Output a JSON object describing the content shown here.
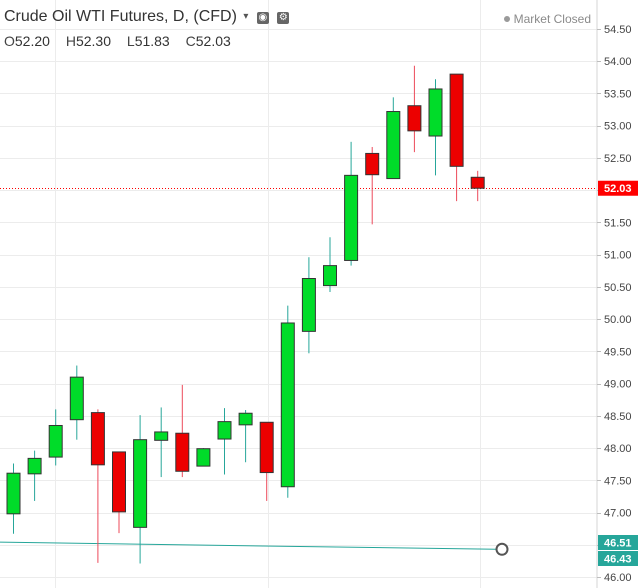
{
  "legend": {
    "title": "Crude Oil WTI Futures, D, (CFD)",
    "caret": "▾",
    "eye_icon": "eye-icon",
    "settings_icon": "gear-icon"
  },
  "ohlc": {
    "open_label": "O",
    "open": "52.20",
    "high_label": "H",
    "high": "52.30",
    "low_label": "L",
    "low": "51.83",
    "close_label": "C",
    "close": "52.03"
  },
  "status": {
    "text": "Market Closed"
  },
  "chart_data": {
    "type": "candlestick",
    "title": "Crude Oil WTI Futures, D, (CFD)",
    "ylim": [
      46.0,
      54.5
    ],
    "y_ticks": [
      "46.00",
      "46.50",
      "47.00",
      "47.50",
      "48.00",
      "48.50",
      "49.00",
      "49.50",
      "50.00",
      "50.50",
      "51.00",
      "51.50",
      "52.00",
      "52.50",
      "53.00",
      "53.50",
      "54.00",
      "54.50"
    ],
    "hidden_ticks": [
      "52.00",
      "46.50"
    ],
    "last_price": {
      "label": "52.03",
      "value": 52.03,
      "color": "#ff0000"
    },
    "trendline_labels": [
      {
        "label": "46.51",
        "value": 46.51,
        "color": "#26a69a"
      },
      {
        "label": "46.43",
        "value": 46.43,
        "color": "#26a69a"
      }
    ],
    "trendline": {
      "start_value": 46.54,
      "end_value": 46.43,
      "color": "#26a69a"
    },
    "colors": {
      "up": "#00dc29",
      "down": "#ec0000",
      "up_wick": "#26a69a",
      "down_wick": "#ec4a5a",
      "grid": "#ececec",
      "axis_text": "#444444"
    },
    "candles": [
      {
        "o": 46.98,
        "h": 47.76,
        "l": 46.67,
        "c": 47.61
      },
      {
        "o": 47.6,
        "h": 47.96,
        "l": 47.18,
        "c": 47.84
      },
      {
        "o": 47.86,
        "h": 48.6,
        "l": 47.73,
        "c": 48.35
      },
      {
        "o": 48.44,
        "h": 49.28,
        "l": 48.13,
        "c": 49.1
      },
      {
        "o": 48.55,
        "h": 48.6,
        "l": 46.22,
        "c": 47.74
      },
      {
        "o": 47.94,
        "h": 47.94,
        "l": 46.68,
        "c": 47.01
      },
      {
        "o": 46.77,
        "h": 48.51,
        "l": 46.21,
        "c": 48.13
      },
      {
        "o": 48.12,
        "h": 48.63,
        "l": 47.55,
        "c": 48.25
      },
      {
        "o": 48.23,
        "h": 48.98,
        "l": 47.55,
        "c": 47.64
      },
      {
        "o": 47.72,
        "h": 48.0,
        "l": 47.74,
        "c": 47.99
      },
      {
        "o": 48.14,
        "h": 48.62,
        "l": 47.59,
        "c": 48.41
      },
      {
        "o": 48.36,
        "h": 48.59,
        "l": 47.78,
        "c": 48.54
      },
      {
        "o": 48.4,
        "h": 48.4,
        "l": 47.18,
        "c": 47.62
      },
      {
        "o": 47.4,
        "h": 50.21,
        "l": 47.23,
        "c": 49.94
      },
      {
        "o": 49.81,
        "h": 50.96,
        "l": 49.47,
        "c": 50.63
      },
      {
        "o": 50.52,
        "h": 51.27,
        "l": 50.42,
        "c": 50.83
      },
      {
        "o": 50.91,
        "h": 52.75,
        "l": 50.83,
        "c": 52.23
      },
      {
        "o": 52.57,
        "h": 52.67,
        "l": 51.47,
        "c": 52.24
      },
      {
        "o": 52.18,
        "h": 53.44,
        "l": 52.18,
        "c": 53.22
      },
      {
        "o": 53.31,
        "h": 53.93,
        "l": 52.59,
        "c": 52.92
      },
      {
        "o": 52.84,
        "h": 53.72,
        "l": 52.23,
        "c": 53.57
      },
      {
        "o": 53.8,
        "h": 53.8,
        "l": 51.83,
        "c": 52.37
      },
      {
        "o": 52.2,
        "h": 52.3,
        "l": 51.83,
        "c": 52.03
      }
    ]
  }
}
